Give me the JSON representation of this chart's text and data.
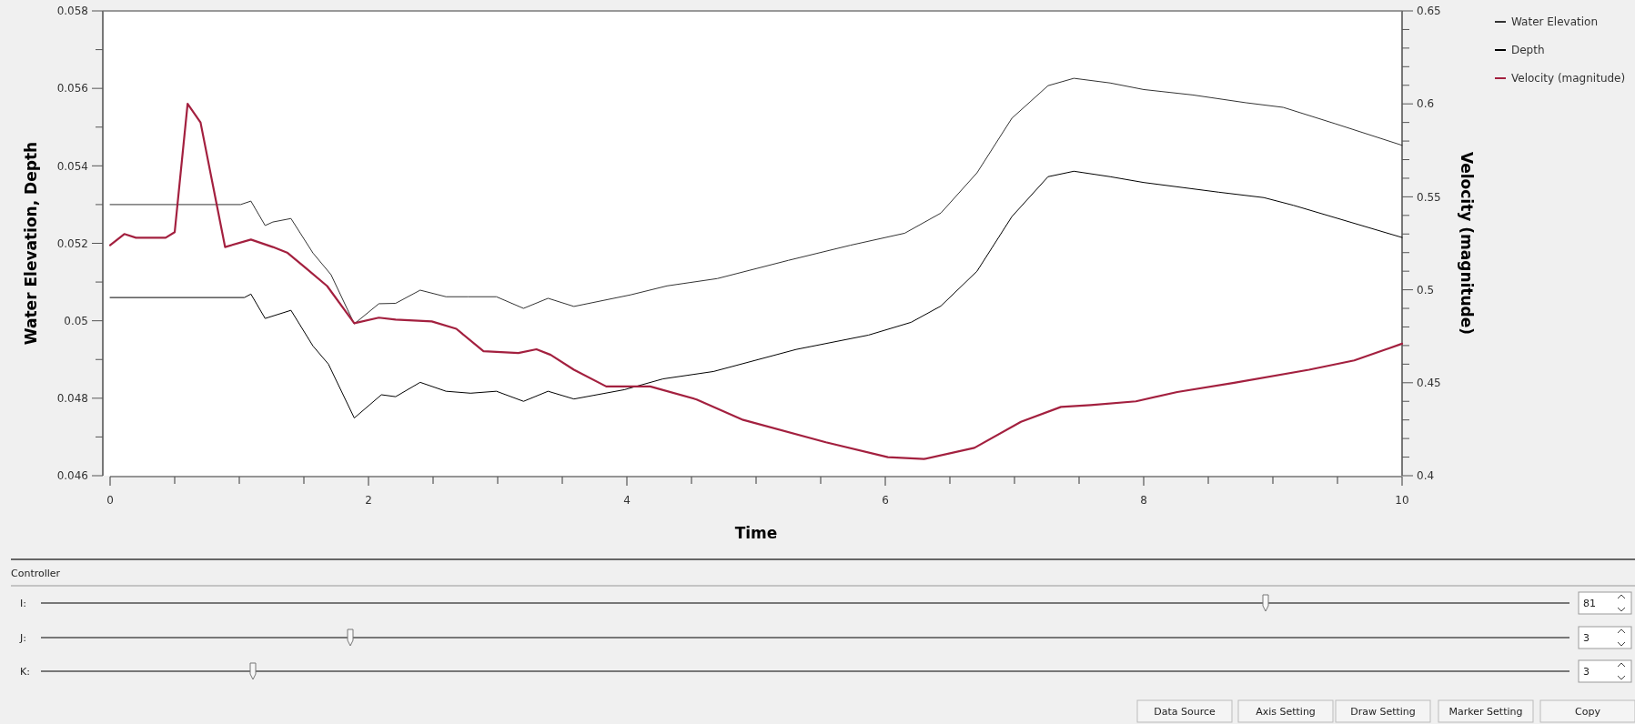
{
  "chart_data": {
    "type": "line",
    "xlabel": "Time",
    "ylabel": "Water Elevation, Depth",
    "y2label": "Velocity (magnitude)",
    "legend": "top right",
    "xlim": [
      0,
      10
    ],
    "ylim": [
      0.046,
      0.058
    ],
    "y2lim": [
      0.4,
      0.65
    ],
    "xticks": [
      0,
      {
        "value": 0.5,
        "label": null
      },
      {
        "value": 1,
        "label": null
      },
      {
        "value": 1.5,
        "label": null
      },
      2,
      {
        "value": 2.5,
        "label": null
      },
      {
        "value": 3,
        "label": null
      },
      {
        "value": 3.5,
        "label": null
      },
      4,
      {
        "value": 4.5,
        "label": null
      },
      {
        "value": 5,
        "label": null
      },
      {
        "value": 5.5,
        "label": null
      },
      6,
      {
        "value": 6.5,
        "label": null
      },
      {
        "value": 7,
        "label": null
      },
      {
        "value": 7.5,
        "label": null
      },
      8,
      {
        "value": 8.5,
        "label": null
      },
      {
        "value": 9,
        "label": null
      },
      {
        "value": 9.5,
        "label": null
      },
      10
    ],
    "yticks": [
      0.046,
      {
        "value": 0.047,
        "label": null
      },
      0.048,
      {
        "value": 0.049,
        "label": null
      },
      0.05,
      {
        "value": 0.051,
        "label": null
      },
      0.052,
      {
        "value": 0.053,
        "label": null
      },
      0.054,
      {
        "value": 0.055,
        "label": null
      },
      0.056,
      {
        "value": 0.057,
        "label": null
      },
      0.058
    ],
    "y2ticks": [
      0.4,
      {
        "value": 0.41,
        "label": null
      },
      {
        "value": 0.42,
        "label": null
      },
      {
        "value": 0.43,
        "label": null
      },
      {
        "value": 0.44,
        "label": null
      },
      0.45,
      {
        "value": 0.46,
        "label": null
      },
      {
        "value": 0.47,
        "label": null
      },
      {
        "value": 0.48,
        "label": null
      },
      {
        "value": 0.49,
        "label": null
      },
      0.5,
      {
        "value": 0.51,
        "label": null
      },
      {
        "value": 0.52,
        "label": null
      },
      {
        "value": 0.53,
        "label": null
      },
      {
        "value": 0.54,
        "label": null
      },
      0.55,
      {
        "value": 0.56,
        "label": null
      },
      {
        "value": 0.57,
        "label": null
      },
      {
        "value": 0.58,
        "label": null
      },
      {
        "value": 0.59,
        "label": null
      },
      0.6,
      {
        "value": 0.61,
        "label": null
      },
      {
        "value": 0.62,
        "label": null
      },
      {
        "value": 0.63,
        "label": null
      },
      {
        "value": 0.64,
        "label": null
      },
      0.65
    ],
    "series": [
      {
        "name": "Water Elevation",
        "color": "#333333",
        "x": [
          0,
          1.01,
          1.09,
          1.2,
          1.26,
          1.4,
          1.57,
          1.71,
          1.89,
          2.08,
          2.21,
          2.4,
          2.6,
          2.77,
          2.99,
          3.2,
          3.39,
          3.59,
          4.03,
          4.31,
          4.7,
          5.25,
          5.73,
          6.15,
          6.43,
          6.71,
          6.98,
          7.26,
          7.46,
          7.74,
          8,
          8.38,
          8.79,
          9.08,
          9.48,
          10
        ],
        "values": [
          0.053,
          0.053,
          0.05309,
          0.05246,
          0.05255,
          0.05264,
          0.05175,
          0.05119,
          0.04992,
          0.05044,
          0.05045,
          0.05079,
          0.05062,
          0.05062,
          0.05062,
          0.05032,
          0.05058,
          0.05037,
          0.05067,
          0.0509,
          0.05109,
          0.05156,
          0.05195,
          0.05226,
          0.05278,
          0.05382,
          0.05523,
          0.05607,
          0.05626,
          0.05614,
          0.05597,
          0.05583,
          0.05563,
          0.05551,
          0.05509,
          0.05453
        ]
      },
      {
        "name": "Depth",
        "color": "#000000",
        "x": [
          0,
          1.04,
          1.09,
          1.2,
          1.4,
          1.57,
          1.69,
          1.89,
          2.1,
          2.21,
          2.4,
          2.6,
          2.79,
          2.99,
          3.2,
          3.39,
          3.59,
          3.98,
          4.28,
          4.67,
          5.31,
          5.87,
          6.2,
          6.43,
          6.71,
          6.98,
          7.26,
          7.46,
          7.74,
          8,
          8.58,
          8.93,
          9.16,
          10
        ],
        "values": [
          0.0506,
          0.0506,
          0.05069,
          0.05006,
          0.05027,
          0.04935,
          0.04888,
          0.04749,
          0.04809,
          0.04804,
          0.04841,
          0.04818,
          0.04813,
          0.04818,
          0.04792,
          0.04818,
          0.04798,
          0.04822,
          0.0485,
          0.04869,
          0.04926,
          0.04963,
          0.04996,
          0.05038,
          0.05128,
          0.05269,
          0.05372,
          0.05386,
          0.05372,
          0.05357,
          0.05332,
          0.05318,
          0.05298,
          0.05215
        ]
      },
      {
        "name": "Velocity (magnitude)",
        "color": "#a3203f",
        "axis": "y2",
        "x": [
          0,
          0.11,
          0.2,
          0.43,
          0.5,
          0.6,
          0.7,
          0.89,
          1.09,
          1.26,
          1.37,
          1.51,
          1.68,
          1.89,
          2.08,
          2.21,
          2.49,
          2.68,
          2.89,
          3.16,
          3.3,
          3.41,
          3.59,
          3.84,
          4.18,
          4.54,
          4.9,
          5.54,
          6.02,
          6.3,
          6.69,
          7.05,
          7.36,
          7.59,
          7.94,
          8.26,
          8.7,
          9.28,
          9.63,
          10
        ],
        "values": [
          0.524,
          0.53,
          0.528,
          0.528,
          0.531,
          0.6,
          0.59,
          0.523,
          0.527,
          0.523,
          0.52,
          0.512,
          0.502,
          0.482,
          0.485,
          0.484,
          0.483,
          0.479,
          0.467,
          0.466,
          0.468,
          0.465,
          0.457,
          0.448,
          0.448,
          0.441,
          0.43,
          0.418,
          0.41,
          0.409,
          0.415,
          0.429,
          0.437,
          0.438,
          0.44,
          0.445,
          0.45,
          0.457,
          0.462,
          0.471
        ]
      }
    ],
    "annotations": [
      "Controller",
      "I:",
      "J:",
      "K:",
      "81",
      "3",
      "3",
      "Data Source",
      "Axis Setting",
      "Draw Setting",
      "Marker Setting",
      "Copy"
    ]
  }
}
